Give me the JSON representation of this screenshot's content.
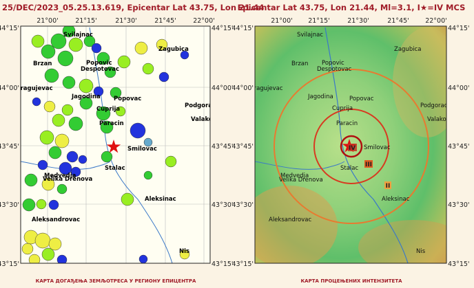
{
  "titles": {
    "left": "25/DEC/2023_05.25.13.619, Epicentar Lat 43.75, Lon 21.44",
    "right": "Epicentar Lat 43.75, Lon 21.44, Ml=3.1, I★=IV MCS"
  },
  "x_labels": [
    "21°00'",
    "21°15'",
    "21°30'",
    "21°45'",
    "22°00'"
  ],
  "y_labels": [
    "44°15'",
    "44°00'",
    "43°45'",
    "43°30'",
    "43°15'"
  ],
  "cities": [
    "Svilajnac",
    "Zagubica",
    "Brzan",
    "Popovic",
    "Despotovac",
    "Kragujevac",
    "Jagodina",
    "Popovac",
    "Podgorac",
    "Cuprija",
    "Valakonje",
    "Paracin",
    "Smilovac",
    "Stalac",
    "Medvedja",
    "Velika Drenova",
    "Aleksinac",
    "Aleksandrovac",
    "Nis"
  ],
  "intensity_labels": [
    "IV",
    "III",
    "II"
  ],
  "captions": {
    "left": "КАРТА ДОГАЂЕЊА ЗЕМЉОТРЕСА У РЕГИОНУ ЕПИЦЕНТРА",
    "right": "КАРТА ПРОЦЕЊЕНИХ ИНТЕНЗИТЕТА"
  }
}
